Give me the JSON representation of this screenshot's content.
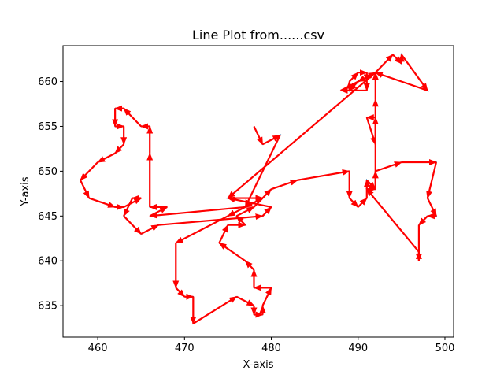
{
  "chart_data": {
    "type": "line",
    "title": "Line Plot from......csv",
    "xlabel": "X-axis",
    "ylabel": "Y-axis",
    "xlim": [
      456,
      501
    ],
    "ylim": [
      631.5,
      664
    ],
    "grid": false,
    "xticks": [
      460,
      470,
      480,
      490,
      500
    ],
    "yticks": [
      635,
      640,
      645,
      650,
      655,
      660
    ],
    "line_color": "#1f77b4",
    "arrow_color": "#ff0000",
    "series": [
      {
        "points": [
          [
            478,
            655
          ],
          [
            479,
            653
          ],
          [
            481,
            654
          ],
          [
            477,
            646
          ],
          [
            475,
            645
          ],
          [
            469,
            642
          ],
          [
            469,
            637
          ],
          [
            470,
            636
          ],
          [
            471,
            636
          ],
          [
            471,
            633
          ],
          [
            476,
            636
          ],
          [
            478,
            635
          ],
          [
            478,
            634
          ],
          [
            479,
            634
          ],
          [
            479,
            635
          ],
          [
            480,
            637
          ],
          [
            478,
            637
          ],
          [
            478,
            639
          ],
          [
            477,
            640
          ],
          [
            474,
            642
          ],
          [
            475,
            644
          ],
          [
            477,
            644
          ],
          [
            476,
            645
          ],
          [
            478,
            646
          ],
          [
            480,
            648
          ],
          [
            483,
            649
          ],
          [
            489,
            650
          ],
          [
            489,
            647
          ],
          [
            490,
            646
          ],
          [
            491,
            647
          ],
          [
            491,
            649
          ],
          [
            492,
            648
          ],
          [
            492,
            650
          ],
          [
            495,
            651
          ],
          [
            499,
            651
          ],
          [
            498,
            647
          ],
          [
            499,
            645
          ],
          [
            498,
            645
          ],
          [
            497,
            644
          ],
          [
            497,
            640
          ],
          [
            497,
            641
          ],
          [
            491,
            648
          ],
          [
            492,
            648
          ],
          [
            492,
            656
          ],
          [
            491,
            656
          ],
          [
            492,
            653
          ],
          [
            492,
            658
          ],
          [
            492,
            661
          ],
          [
            494,
            663
          ],
          [
            495,
            662
          ],
          [
            495,
            663
          ],
          [
            498,
            659
          ],
          [
            492,
            661
          ],
          [
            490,
            660
          ],
          [
            489,
            659
          ],
          [
            489,
            660
          ],
          [
            490,
            661
          ],
          [
            491,
            661
          ],
          [
            491,
            660
          ],
          [
            491,
            659
          ],
          [
            488,
            659
          ],
          [
            492,
            661
          ],
          [
            475,
            647
          ],
          [
            479,
            647
          ],
          [
            477,
            646
          ],
          [
            466,
            645
          ],
          [
            468,
            646
          ],
          [
            466,
            646
          ],
          [
            466,
            652
          ],
          [
            466,
            655
          ],
          [
            465,
            655
          ],
          [
            463,
            657
          ],
          [
            462,
            657
          ],
          [
            462,
            655
          ],
          [
            463,
            655
          ],
          [
            463,
            653
          ],
          [
            462,
            652
          ],
          [
            460,
            651
          ],
          [
            458,
            649
          ],
          [
            459,
            647
          ],
          [
            462,
            646
          ],
          [
            463,
            646
          ],
          [
            465,
            647
          ],
          [
            464,
            647
          ],
          [
            463,
            645
          ],
          [
            465,
            643
          ],
          [
            467,
            644
          ],
          [
            479,
            645
          ],
          [
            480,
            646
          ],
          [
            475,
            647
          ]
        ]
      }
    ]
  }
}
